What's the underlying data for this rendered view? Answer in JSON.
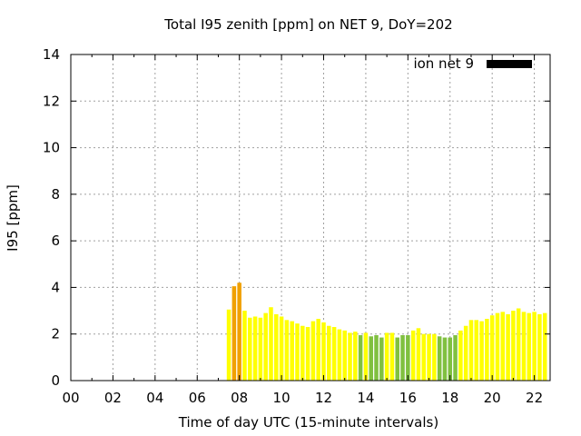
{
  "chart_data": {
    "type": "bar",
    "title": "Total I95 zenith [ppm] on NET 9, DoY=202",
    "xlabel": "Time of day UTC (15-minute intervals)",
    "ylabel": "I95 [ppm]",
    "xlim": [
      0,
      22.75
    ],
    "ylim": [
      0,
      14
    ],
    "xticks": [
      "00",
      "02",
      "04",
      "06",
      "08",
      "10",
      "12",
      "14",
      "16",
      "18",
      "20",
      "22"
    ],
    "yticks": [
      "0",
      "2",
      "4",
      "6",
      "8",
      "10",
      "12",
      "14"
    ],
    "grid": true,
    "legend": {
      "label": "ion net 9",
      "color": "#000000",
      "position": "top-right"
    },
    "bar_colors": {
      "yellow": "#ffff00",
      "orange": "#f0a000",
      "green": "#80c040"
    },
    "bars": [
      {
        "t": 7.5,
        "v": 3.05,
        "c": "yellow"
      },
      {
        "t": 7.75,
        "v": 4.05,
        "c": "orange"
      },
      {
        "t": 8.0,
        "v": 4.2,
        "c": "orange"
      },
      {
        "t": 8.25,
        "v": 3.0,
        "c": "yellow"
      },
      {
        "t": 8.5,
        "v": 2.7,
        "c": "yellow"
      },
      {
        "t": 8.75,
        "v": 2.75,
        "c": "yellow"
      },
      {
        "t": 9.0,
        "v": 2.7,
        "c": "yellow"
      },
      {
        "t": 9.25,
        "v": 2.9,
        "c": "yellow"
      },
      {
        "t": 9.5,
        "v": 3.15,
        "c": "yellow"
      },
      {
        "t": 9.75,
        "v": 2.85,
        "c": "yellow"
      },
      {
        "t": 10.0,
        "v": 2.75,
        "c": "yellow"
      },
      {
        "t": 10.25,
        "v": 2.6,
        "c": "yellow"
      },
      {
        "t": 10.5,
        "v": 2.55,
        "c": "yellow"
      },
      {
        "t": 10.75,
        "v": 2.45,
        "c": "yellow"
      },
      {
        "t": 11.0,
        "v": 2.35,
        "c": "yellow"
      },
      {
        "t": 11.25,
        "v": 2.3,
        "c": "yellow"
      },
      {
        "t": 11.5,
        "v": 2.55,
        "c": "yellow"
      },
      {
        "t": 11.75,
        "v": 2.65,
        "c": "yellow"
      },
      {
        "t": 12.0,
        "v": 2.5,
        "c": "yellow"
      },
      {
        "t": 12.25,
        "v": 2.35,
        "c": "yellow"
      },
      {
        "t": 12.5,
        "v": 2.3,
        "c": "yellow"
      },
      {
        "t": 12.75,
        "v": 2.2,
        "c": "yellow"
      },
      {
        "t": 13.0,
        "v": 2.15,
        "c": "yellow"
      },
      {
        "t": 13.25,
        "v": 2.05,
        "c": "yellow"
      },
      {
        "t": 13.5,
        "v": 2.1,
        "c": "yellow"
      },
      {
        "t": 13.75,
        "v": 1.95,
        "c": "green"
      },
      {
        "t": 14.0,
        "v": 2.05,
        "c": "yellow"
      },
      {
        "t": 14.25,
        "v": 1.9,
        "c": "green"
      },
      {
        "t": 14.5,
        "v": 1.95,
        "c": "green"
      },
      {
        "t": 14.75,
        "v": 1.85,
        "c": "green"
      },
      {
        "t": 15.0,
        "v": 2.05,
        "c": "yellow"
      },
      {
        "t": 15.25,
        "v": 2.05,
        "c": "yellow"
      },
      {
        "t": 15.5,
        "v": 1.85,
        "c": "green"
      },
      {
        "t": 15.75,
        "v": 1.95,
        "c": "green"
      },
      {
        "t": 16.0,
        "v": 1.95,
        "c": "green"
      },
      {
        "t": 16.25,
        "v": 2.15,
        "c": "yellow"
      },
      {
        "t": 16.5,
        "v": 2.25,
        "c": "yellow"
      },
      {
        "t": 16.75,
        "v": 2.0,
        "c": "yellow"
      },
      {
        "t": 17.0,
        "v": 2.0,
        "c": "yellow"
      },
      {
        "t": 17.25,
        "v": 2.0,
        "c": "yellow"
      },
      {
        "t": 17.5,
        "v": 1.9,
        "c": "green"
      },
      {
        "t": 17.75,
        "v": 1.85,
        "c": "green"
      },
      {
        "t": 18.0,
        "v": 1.85,
        "c": "green"
      },
      {
        "t": 18.25,
        "v": 1.95,
        "c": "green"
      },
      {
        "t": 18.5,
        "v": 2.15,
        "c": "yellow"
      },
      {
        "t": 18.75,
        "v": 2.35,
        "c": "yellow"
      },
      {
        "t": 19.0,
        "v": 2.6,
        "c": "yellow"
      },
      {
        "t": 19.25,
        "v": 2.6,
        "c": "yellow"
      },
      {
        "t": 19.5,
        "v": 2.55,
        "c": "yellow"
      },
      {
        "t": 19.75,
        "v": 2.65,
        "c": "yellow"
      },
      {
        "t": 20.0,
        "v": 2.8,
        "c": "yellow"
      },
      {
        "t": 20.25,
        "v": 2.9,
        "c": "yellow"
      },
      {
        "t": 20.5,
        "v": 2.95,
        "c": "yellow"
      },
      {
        "t": 20.75,
        "v": 2.85,
        "c": "yellow"
      },
      {
        "t": 21.0,
        "v": 3.0,
        "c": "yellow"
      },
      {
        "t": 21.25,
        "v": 3.1,
        "c": "yellow"
      },
      {
        "t": 21.5,
        "v": 2.95,
        "c": "yellow"
      },
      {
        "t": 21.75,
        "v": 2.9,
        "c": "yellow"
      },
      {
        "t": 22.0,
        "v": 2.95,
        "c": "yellow"
      },
      {
        "t": 22.25,
        "v": 2.85,
        "c": "yellow"
      },
      {
        "t": 22.5,
        "v": 2.9,
        "c": "yellow"
      }
    ]
  }
}
